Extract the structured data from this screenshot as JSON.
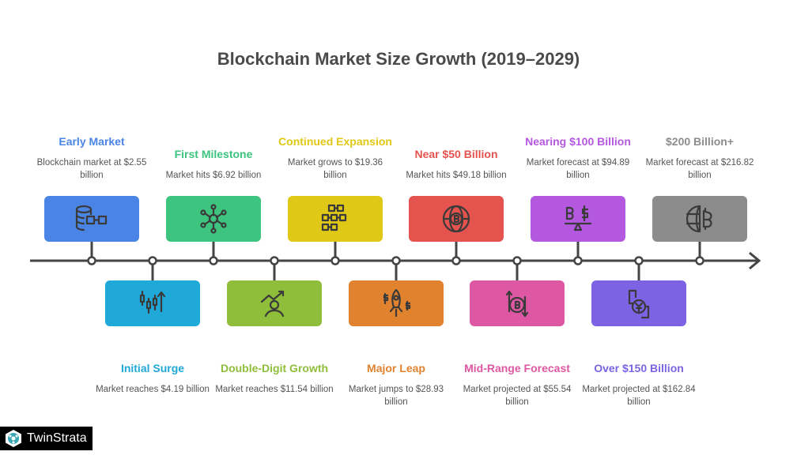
{
  "title": "Blockchain Market Size Growth (2019–2029)",
  "items": [
    {
      "heading": "Early Market",
      "desc": "Blockchain market at $2.55 billion",
      "color": "#4a84e4",
      "icon": "database-blockchain-icon",
      "pos": "top"
    },
    {
      "heading": "Initial Surge",
      "desc": "Market reaches $4.19 billion",
      "color": "#1fa8d8",
      "icon": "candlestick-up-icon",
      "pos": "bottom"
    },
    {
      "heading": "First Milestone",
      "desc": "Market hits $6.92 billion",
      "color": "#3dc47e",
      "icon": "network-hub-icon",
      "pos": "top"
    },
    {
      "heading": "Double-Digit Growth",
      "desc": "Market reaches $11.54 billion",
      "color": "#8fbe3a",
      "icon": "person-growth-icon",
      "pos": "bottom"
    },
    {
      "heading": "Continued Expansion",
      "desc": "Market grows to $19.36 billion",
      "color": "#e0c816",
      "icon": "block-chain-grid-icon",
      "pos": "top"
    },
    {
      "heading": "Major Leap",
      "desc": "Market jumps to $28.93 billion",
      "color": "#e0822e",
      "icon": "rocket-dollar-icon",
      "pos": "bottom"
    },
    {
      "heading": "Near $50 Billion",
      "desc": "Market hits $49.18 billion",
      "color": "#e4534e",
      "icon": "globe-bitcoin-icon",
      "pos": "top"
    },
    {
      "heading": "Mid-Range Forecast",
      "desc": "Market projected at $55.54 billion",
      "color": "#de57a3",
      "icon": "bitcoin-exchange-icon",
      "pos": "bottom"
    },
    {
      "heading": "Nearing $100 Billion",
      "desc": "Market forecast at $94.89 billion",
      "color": "#b558e0",
      "icon": "balance-bitcoin-dollar-icon",
      "pos": "top"
    },
    {
      "heading": "Over $150 Billion",
      "desc": "Market projected at $162.84 billion",
      "color": "#7b63e4",
      "icon": "yen-transfer-icon",
      "pos": "bottom"
    },
    {
      "heading": "$200 Billion+",
      "desc": "Market forecast at $216.82 billion",
      "color": "#8c8c8c",
      "icon": "globe-half-bitcoin-icon",
      "pos": "top"
    }
  ],
  "logo": {
    "text": "TwinStrata"
  }
}
